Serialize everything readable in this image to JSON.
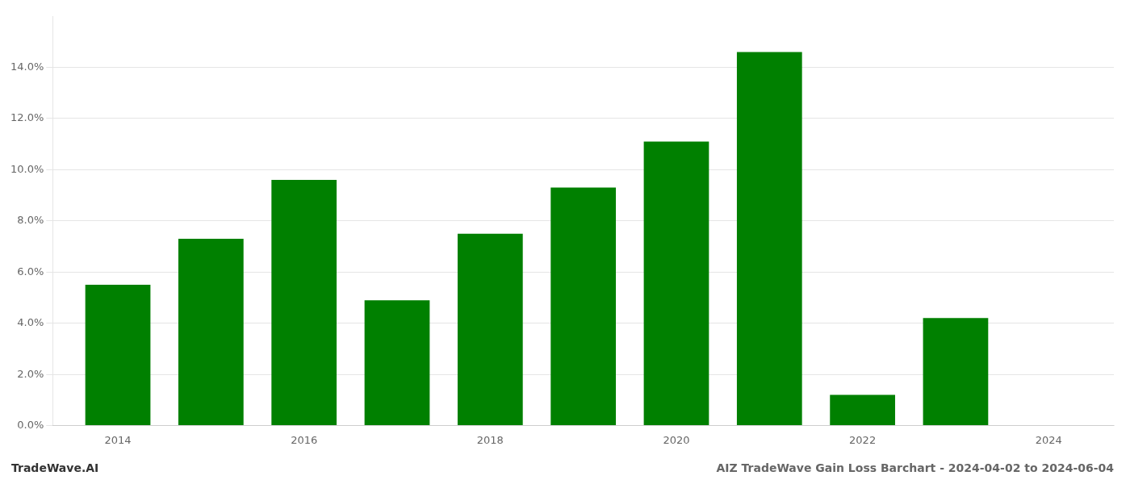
{
  "chart_data": {
    "type": "bar",
    "title": "AIZ TradeWave Gain Loss Barchart - 2024-04-02 to 2024-06-04",
    "annotations": [
      {
        "text": "TradeWave.AI"
      }
    ],
    "x": [
      2014,
      2015,
      2016,
      2017,
      2018,
      2019,
      2020,
      2021,
      2022,
      2023
    ],
    "values": [
      0.055,
      0.073,
      0.096,
      0.049,
      0.075,
      0.093,
      0.111,
      0.146,
      0.012,
      0.042
    ],
    "color": "#008000",
    "xlim": [
      2013.3,
      2024.7
    ],
    "xticks": [
      2014,
      2016,
      2018,
      2020,
      2022,
      2024
    ],
    "ylim": [
      0,
      0.16
    ],
    "yticks": [
      {
        "value": 0.0,
        "label": "0.0%"
      },
      {
        "value": 0.02,
        "label": "2.0%"
      },
      {
        "value": 0.04,
        "label": "4.0%"
      },
      {
        "value": 0.06,
        "label": "6.0%"
      },
      {
        "value": 0.08,
        "label": "8.0%"
      },
      {
        "value": 0.1,
        "label": "10.0%"
      },
      {
        "value": 0.12,
        "label": "12.0%"
      },
      {
        "value": 0.14,
        "label": "14.0%"
      }
    ],
    "grid": "y"
  }
}
